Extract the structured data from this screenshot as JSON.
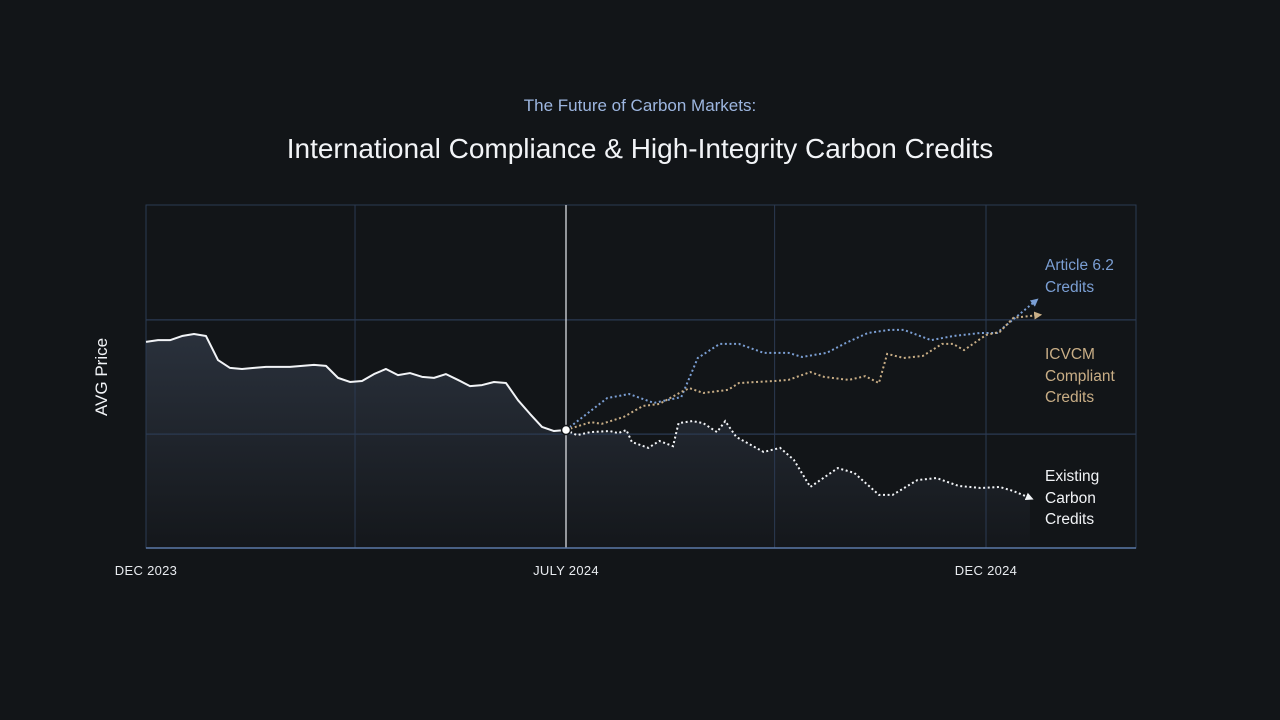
{
  "header": {
    "subtitle": "The Future of Carbon Markets:",
    "title": "International Compliance & High-Integrity Carbon Credits"
  },
  "chart_data": {
    "type": "line",
    "title": "International Compliance & High-Integrity Carbon Credits",
    "subtitle": "The Future of Carbon Markets:",
    "ylabel": "AVG Price",
    "xlabel": "",
    "y_ticks_shown": false,
    "ylim": [
      0,
      100
    ],
    "grid": true,
    "x_ticks": [
      {
        "label": "DEC 2023",
        "date": "2023-12-01"
      },
      {
        "label": "JULY 2024",
        "date": "2024-07-01"
      },
      {
        "label": "DEC 2024",
        "date": "2024-12-01"
      }
    ],
    "vertical_gridline_dates": [
      "2024-03-16",
      "2024-07-01",
      "2024-09-15",
      "2024-12-01"
    ],
    "highlight_date": "2024-07-01",
    "historical": {
      "style": "solid",
      "color": "#f2f4f7",
      "start": "2023-12-01",
      "end": "2024-07-01",
      "values": [
        60.1,
        60.6,
        60.6,
        61.8,
        62.4,
        61.8,
        54.8,
        52.5,
        52.2,
        52.5,
        52.8,
        52.8,
        52.8,
        53.1,
        53.4,
        53.1,
        49.6,
        48.4,
        48.7,
        50.7,
        52.2,
        50.4,
        51.0,
        49.9,
        49.6,
        50.7,
        49.0,
        47.2,
        47.5,
        48.4,
        48.1,
        43.1,
        39.1,
        35.3,
        34.1,
        34.4
      ]
    },
    "series": [
      {
        "name": "Article 6.2 Credits",
        "label_lines": [
          "Article 6.2",
          "Credits"
        ],
        "color": "#7b9fd4",
        "style": "dotted",
        "points": [
          [
            "2024-07-01",
            34.4
          ],
          [
            "2024-07-16",
            43.7
          ],
          [
            "2024-07-24",
            44.9
          ],
          [
            "2024-08-02",
            42.3
          ],
          [
            "2024-08-12",
            44.0
          ],
          [
            "2024-08-18",
            55.4
          ],
          [
            "2024-08-26",
            59.5
          ],
          [
            "2024-09-02",
            59.5
          ],
          [
            "2024-09-11",
            56.9
          ],
          [
            "2024-09-20",
            56.9
          ],
          [
            "2024-09-25",
            55.7
          ],
          [
            "2024-10-04",
            56.9
          ],
          [
            "2024-10-11",
            59.8
          ],
          [
            "2024-10-19",
            62.7
          ],
          [
            "2024-10-27",
            63.6
          ],
          [
            "2024-11-01",
            63.6
          ],
          [
            "2024-11-11",
            60.6
          ],
          [
            "2024-11-19",
            61.8
          ],
          [
            "2024-11-29",
            62.7
          ],
          [
            "2024-12-05",
            62.7
          ],
          [
            "2024-12-19",
            72.0
          ]
        ]
      },
      {
        "name": "ICVCM Compliant Credits",
        "label_lines": [
          "ICVCM",
          "Compliant",
          "Credits"
        ],
        "color": "#c9ae86",
        "style": "dotted",
        "points": [
          [
            "2024-07-01",
            34.4
          ],
          [
            "2024-07-10",
            36.7
          ],
          [
            "2024-07-14",
            36.2
          ],
          [
            "2024-07-22",
            38.2
          ],
          [
            "2024-07-29",
            41.4
          ],
          [
            "2024-08-04",
            42.0
          ],
          [
            "2024-08-12",
            45.5
          ],
          [
            "2024-08-15",
            46.6
          ],
          [
            "2024-08-20",
            45.2
          ],
          [
            "2024-08-29",
            46.1
          ],
          [
            "2024-09-02",
            48.1
          ],
          [
            "2024-09-15",
            48.7
          ],
          [
            "2024-09-20",
            49.0
          ],
          [
            "2024-09-28",
            51.3
          ],
          [
            "2024-10-03",
            49.9
          ],
          [
            "2024-10-12",
            49.0
          ],
          [
            "2024-10-18",
            50.1
          ],
          [
            "2024-10-23",
            48.1
          ],
          [
            "2024-10-26",
            56.6
          ],
          [
            "2024-11-01",
            55.4
          ],
          [
            "2024-11-08",
            56.0
          ],
          [
            "2024-11-15",
            59.5
          ],
          [
            "2024-11-19",
            59.5
          ],
          [
            "2024-11-23",
            57.7
          ],
          [
            "2024-12-01",
            62.1
          ],
          [
            "2024-12-06",
            63.0
          ],
          [
            "2024-12-11",
            67.1
          ],
          [
            "2024-12-20",
            67.9
          ]
        ]
      },
      {
        "name": "Existing Carbon Credits",
        "label_lines": [
          "Existing",
          "Carbon",
          "Credits"
        ],
        "color": "#f2f4f7",
        "style": "dotted",
        "points": [
          [
            "2024-07-01",
            34.4
          ],
          [
            "2024-07-05",
            32.9
          ],
          [
            "2024-07-10",
            33.8
          ],
          [
            "2024-07-17",
            34.1
          ],
          [
            "2024-07-20",
            33.5
          ],
          [
            "2024-07-23",
            34.4
          ],
          [
            "2024-07-25",
            30.9
          ],
          [
            "2024-07-31",
            29.2
          ],
          [
            "2024-08-04",
            31.2
          ],
          [
            "2024-08-09",
            29.7
          ],
          [
            "2024-08-11",
            36.4
          ],
          [
            "2024-08-16",
            37.0
          ],
          [
            "2024-08-20",
            36.4
          ],
          [
            "2024-08-25",
            33.8
          ],
          [
            "2024-08-28",
            37.0
          ],
          [
            "2024-09-01",
            32.4
          ],
          [
            "2024-09-11",
            28.0
          ],
          [
            "2024-09-17",
            29.2
          ],
          [
            "2024-09-22",
            25.7
          ],
          [
            "2024-09-28",
            17.8
          ],
          [
            "2024-10-08",
            23.3
          ],
          [
            "2024-10-14",
            21.9
          ],
          [
            "2024-10-23",
            15.5
          ],
          [
            "2024-10-28",
            15.5
          ],
          [
            "2024-11-06",
            19.8
          ],
          [
            "2024-11-13",
            20.4
          ],
          [
            "2024-11-21",
            18.1
          ],
          [
            "2024-11-29",
            17.5
          ],
          [
            "2024-12-06",
            17.8
          ],
          [
            "2024-12-11",
            16.6
          ],
          [
            "2024-12-17",
            14.6
          ]
        ]
      }
    ],
    "colors": {
      "background": "#121518",
      "grid": "#2b3a52",
      "axis": "#5b79a8",
      "article": "#7b9fd4",
      "icvcm": "#c9ae86",
      "existing": "#f2f4f7"
    }
  }
}
